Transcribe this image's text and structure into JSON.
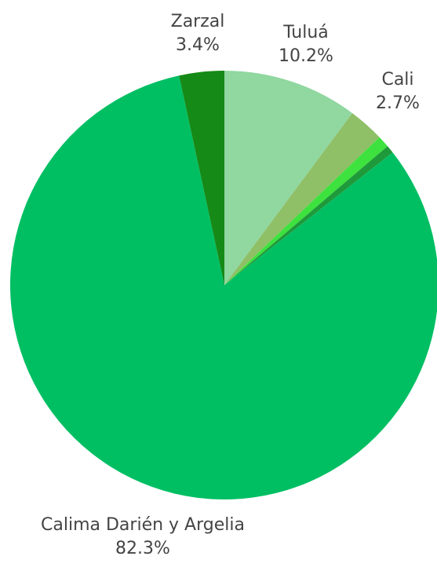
{
  "chart_data": {
    "type": "pie",
    "start_angle_deg": 0,
    "direction": "clockwise",
    "slices": [
      {
        "label": "Tuluá",
        "value": 10.2,
        "value_label": "10.2%",
        "color": "#90d7a0",
        "show_label": true
      },
      {
        "label": "Cali",
        "value": 2.7,
        "value_label": "2.7%",
        "color": "#8fbf66",
        "show_label": true
      },
      {
        "label": "",
        "value": 0.9,
        "value_label": "",
        "color": "#3ee23e",
        "show_label": false
      },
      {
        "label": "",
        "value": 0.6,
        "value_label": "",
        "color": "#1f9a3a",
        "show_label": false
      },
      {
        "label": "Calima Darién y Argelia",
        "value": 82.3,
        "value_label": "82.3%",
        "color": "#00bf63",
        "show_label": true
      },
      {
        "label": "Zarzal",
        "value": 3.4,
        "value_label": "3.4%",
        "color": "#168a16",
        "show_label": true
      }
    ]
  }
}
